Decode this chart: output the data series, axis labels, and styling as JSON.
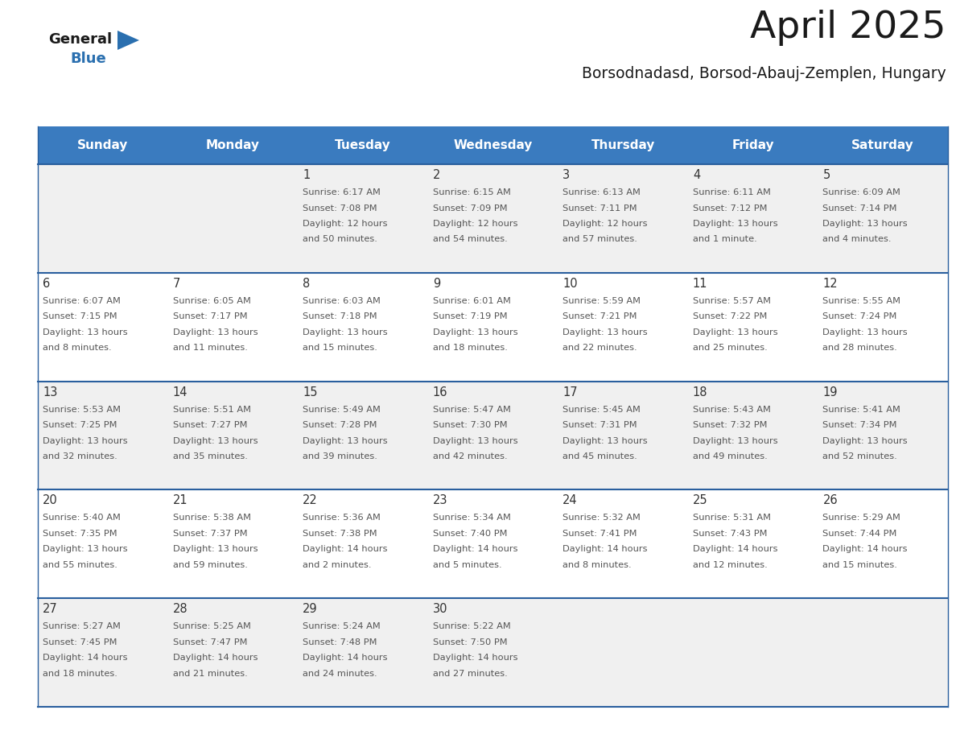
{
  "title": "April 2025",
  "subtitle": "Borsodnadasd, Borsod-Abauj-Zemplen, Hungary",
  "days_of_week": [
    "Sunday",
    "Monday",
    "Tuesday",
    "Wednesday",
    "Thursday",
    "Friday",
    "Saturday"
  ],
  "header_bg_color": "#3a7bbf",
  "header_text_color": "#ffffff",
  "cell_bg_color_light": "#f0f0f0",
  "cell_bg_color_white": "#ffffff",
  "day_number_color": "#333333",
  "info_text_color": "#555555",
  "divider_color": "#2a5f9e",
  "logo_general_color": "#1a1a1a",
  "logo_blue_color": "#2a6faf",
  "title_color": "#1a1a1a",
  "subtitle_color": "#1a1a1a",
  "calendar_data": [
    [
      {
        "day": null,
        "sunrise": null,
        "sunset": null,
        "daylight": null
      },
      {
        "day": null,
        "sunrise": null,
        "sunset": null,
        "daylight": null
      },
      {
        "day": 1,
        "sunrise": "6:17 AM",
        "sunset": "7:08 PM",
        "daylight": "12 hours\nand 50 minutes."
      },
      {
        "day": 2,
        "sunrise": "6:15 AM",
        "sunset": "7:09 PM",
        "daylight": "12 hours\nand 54 minutes."
      },
      {
        "day": 3,
        "sunrise": "6:13 AM",
        "sunset": "7:11 PM",
        "daylight": "12 hours\nand 57 minutes."
      },
      {
        "day": 4,
        "sunrise": "6:11 AM",
        "sunset": "7:12 PM",
        "daylight": "13 hours\nand 1 minute."
      },
      {
        "day": 5,
        "sunrise": "6:09 AM",
        "sunset": "7:14 PM",
        "daylight": "13 hours\nand 4 minutes."
      }
    ],
    [
      {
        "day": 6,
        "sunrise": "6:07 AM",
        "sunset": "7:15 PM",
        "daylight": "13 hours\nand 8 minutes."
      },
      {
        "day": 7,
        "sunrise": "6:05 AM",
        "sunset": "7:17 PM",
        "daylight": "13 hours\nand 11 minutes."
      },
      {
        "day": 8,
        "sunrise": "6:03 AM",
        "sunset": "7:18 PM",
        "daylight": "13 hours\nand 15 minutes."
      },
      {
        "day": 9,
        "sunrise": "6:01 AM",
        "sunset": "7:19 PM",
        "daylight": "13 hours\nand 18 minutes."
      },
      {
        "day": 10,
        "sunrise": "5:59 AM",
        "sunset": "7:21 PM",
        "daylight": "13 hours\nand 22 minutes."
      },
      {
        "day": 11,
        "sunrise": "5:57 AM",
        "sunset": "7:22 PM",
        "daylight": "13 hours\nand 25 minutes."
      },
      {
        "day": 12,
        "sunrise": "5:55 AM",
        "sunset": "7:24 PM",
        "daylight": "13 hours\nand 28 minutes."
      }
    ],
    [
      {
        "day": 13,
        "sunrise": "5:53 AM",
        "sunset": "7:25 PM",
        "daylight": "13 hours\nand 32 minutes."
      },
      {
        "day": 14,
        "sunrise": "5:51 AM",
        "sunset": "7:27 PM",
        "daylight": "13 hours\nand 35 minutes."
      },
      {
        "day": 15,
        "sunrise": "5:49 AM",
        "sunset": "7:28 PM",
        "daylight": "13 hours\nand 39 minutes."
      },
      {
        "day": 16,
        "sunrise": "5:47 AM",
        "sunset": "7:30 PM",
        "daylight": "13 hours\nand 42 minutes."
      },
      {
        "day": 17,
        "sunrise": "5:45 AM",
        "sunset": "7:31 PM",
        "daylight": "13 hours\nand 45 minutes."
      },
      {
        "day": 18,
        "sunrise": "5:43 AM",
        "sunset": "7:32 PM",
        "daylight": "13 hours\nand 49 minutes."
      },
      {
        "day": 19,
        "sunrise": "5:41 AM",
        "sunset": "7:34 PM",
        "daylight": "13 hours\nand 52 minutes."
      }
    ],
    [
      {
        "day": 20,
        "sunrise": "5:40 AM",
        "sunset": "7:35 PM",
        "daylight": "13 hours\nand 55 minutes."
      },
      {
        "day": 21,
        "sunrise": "5:38 AM",
        "sunset": "7:37 PM",
        "daylight": "13 hours\nand 59 minutes."
      },
      {
        "day": 22,
        "sunrise": "5:36 AM",
        "sunset": "7:38 PM",
        "daylight": "14 hours\nand 2 minutes."
      },
      {
        "day": 23,
        "sunrise": "5:34 AM",
        "sunset": "7:40 PM",
        "daylight": "14 hours\nand 5 minutes."
      },
      {
        "day": 24,
        "sunrise": "5:32 AM",
        "sunset": "7:41 PM",
        "daylight": "14 hours\nand 8 minutes."
      },
      {
        "day": 25,
        "sunrise": "5:31 AM",
        "sunset": "7:43 PM",
        "daylight": "14 hours\nand 12 minutes."
      },
      {
        "day": 26,
        "sunrise": "5:29 AM",
        "sunset": "7:44 PM",
        "daylight": "14 hours\nand 15 minutes."
      }
    ],
    [
      {
        "day": 27,
        "sunrise": "5:27 AM",
        "sunset": "7:45 PM",
        "daylight": "14 hours\nand 18 minutes."
      },
      {
        "day": 28,
        "sunrise": "5:25 AM",
        "sunset": "7:47 PM",
        "daylight": "14 hours\nand 21 minutes."
      },
      {
        "day": 29,
        "sunrise": "5:24 AM",
        "sunset": "7:48 PM",
        "daylight": "14 hours\nand 24 minutes."
      },
      {
        "day": 30,
        "sunrise": "5:22 AM",
        "sunset": "7:50 PM",
        "daylight": "14 hours\nand 27 minutes."
      },
      {
        "day": null,
        "sunrise": null,
        "sunset": null,
        "daylight": null
      },
      {
        "day": null,
        "sunrise": null,
        "sunset": null,
        "daylight": null
      },
      {
        "day": null,
        "sunrise": null,
        "sunset": null,
        "daylight": null
      }
    ]
  ],
  "fig_width": 11.88,
  "fig_height": 9.18,
  "dpi": 100
}
